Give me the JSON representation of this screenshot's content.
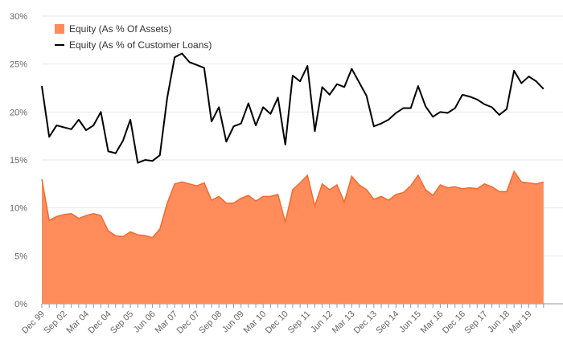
{
  "chart_data": {
    "type": "area",
    "title": "",
    "xlabel": "",
    "ylabel": "",
    "ylim": [
      0,
      30
    ],
    "y_ticks": [
      "0%",
      "5%",
      "10%",
      "15%",
      "20%",
      "25%",
      "30%"
    ],
    "x_ticks": [
      "Dec 99",
      "Sep 02",
      "Mar 04",
      "Dec 04",
      "Sep 05",
      "Jun 06",
      "Mar 07",
      "Dec 07",
      "Sep 08",
      "Jun 09",
      "Mar 10",
      "Dec 10",
      "Sep 11",
      "Jun 12",
      "Mar 13",
      "Dec 13",
      "Sep 14",
      "Jun 15",
      "Mar 16",
      "Dec 16",
      "Sep 17",
      "Jun 18",
      "Mar 19"
    ],
    "x_range": [
      0,
      69
    ],
    "grid": true,
    "legend_position": "top-left",
    "series": [
      {
        "name": "Equity (As % Of Assets)",
        "render": "area",
        "color": "#ff8c5a",
        "stroke": "#f26b30",
        "values": [
          13.0,
          8.7,
          9.1,
          9.3,
          9.4,
          8.9,
          9.2,
          9.4,
          9.2,
          7.6,
          7.1,
          7.0,
          7.5,
          7.2,
          7.1,
          6.9,
          7.8,
          10.5,
          12.5,
          12.7,
          12.5,
          12.3,
          12.6,
          10.8,
          11.2,
          10.5,
          10.5,
          11.0,
          11.3,
          10.7,
          11.2,
          11.2,
          11.4,
          8.5,
          11.9,
          12.6,
          13.4,
          10.2,
          12.5,
          11.9,
          12.4,
          10.6,
          13.3,
          12.4,
          11.9,
          10.9,
          11.2,
          10.8,
          11.4,
          11.6,
          12.3,
          13.4,
          11.9,
          11.3,
          12.4,
          12.1,
          12.2,
          12.0,
          12.1,
          12.0,
          12.5,
          12.2,
          11.7,
          11.7,
          13.8,
          12.7,
          12.6,
          12.5,
          12.7
        ]
      },
      {
        "name": "Equity (As % of Customer Loans)",
        "render": "line",
        "color": "#000000",
        "values": [
          22.7,
          17.4,
          18.6,
          18.4,
          18.2,
          19.2,
          18.1,
          18.6,
          20.0,
          15.9,
          15.7,
          17.0,
          19.2,
          14.7,
          15.0,
          14.9,
          15.5,
          21.5,
          25.7,
          26.1,
          25.2,
          24.9,
          24.6,
          19.0,
          20.5,
          16.9,
          18.5,
          18.8,
          20.9,
          18.6,
          20.5,
          19.8,
          21.5,
          16.6,
          23.8,
          23.2,
          24.8,
          18.0,
          22.6,
          21.8,
          22.9,
          22.6,
          24.5,
          23.1,
          21.7,
          18.5,
          18.8,
          19.2,
          19.9,
          20.4,
          20.4,
          22.7,
          20.6,
          19.5,
          20.0,
          19.9,
          20.4,
          21.8,
          21.6,
          21.3,
          20.8,
          20.5,
          19.7,
          20.3,
          24.3,
          23.0,
          23.7,
          23.2,
          22.4
        ]
      }
    ]
  }
}
